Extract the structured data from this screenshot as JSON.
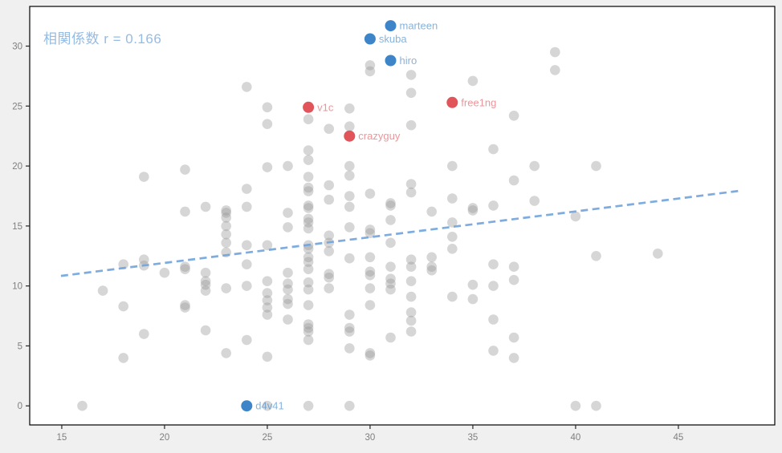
{
  "figure": {
    "bg_color": "#f0f0f0",
    "plot_bg_color": "#ffffff",
    "border_color": "#000000",
    "tick_label_color": "#7f7f7f"
  },
  "chart_data": {
    "type": "scatter",
    "annotation": {
      "text": "相関係数 r = 0.166",
      "color": "#82b1e0"
    },
    "xlim": [
      13.44,
      49.69
    ],
    "ylim": [
      -1.59,
      33.31
    ],
    "x_ticks": [
      15,
      20,
      25,
      30,
      35,
      40,
      45
    ],
    "y_ticks": [
      0,
      5,
      10,
      15,
      20,
      25,
      30
    ],
    "grid": false,
    "legend": "none",
    "trend_line": {
      "style": "dashed",
      "color": "#70a3da",
      "x": [
        14.96,
        47.93
      ],
      "y": [
        10.84,
        17.92
      ]
    },
    "series": [
      {
        "name": "all-players",
        "color": "#999999",
        "opacity": 0.4,
        "marker_radius": 6.3,
        "points": [
          [
            16,
            0
          ],
          [
            17,
            9.6
          ],
          [
            18,
            4
          ],
          [
            18,
            8.3
          ],
          [
            18,
            11.8
          ],
          [
            19,
            6
          ],
          [
            19,
            11.7
          ],
          [
            19,
            12.2
          ],
          [
            19,
            19.1
          ],
          [
            20,
            11.1
          ],
          [
            21,
            8.2
          ],
          [
            21,
            8.4
          ],
          [
            21,
            11.4
          ],
          [
            21,
            11.6
          ],
          [
            21,
            16.2
          ],
          [
            21,
            19.7
          ],
          [
            22,
            6.3
          ],
          [
            22,
            9.6
          ],
          [
            22,
            10.1
          ],
          [
            22,
            10.4
          ],
          [
            22,
            11.1
          ],
          [
            22,
            16.6
          ],
          [
            23,
            4.4
          ],
          [
            23,
            9.8
          ],
          [
            23,
            12.8
          ],
          [
            23,
            13.6
          ],
          [
            23,
            14.3
          ],
          [
            23,
            15
          ],
          [
            23,
            15.7
          ],
          [
            23,
            16.1
          ],
          [
            23,
            16.3
          ],
          [
            24,
            5.5
          ],
          [
            24,
            10
          ],
          [
            24,
            11.8
          ],
          [
            24,
            13.4
          ],
          [
            24,
            16.6
          ],
          [
            24,
            18.1
          ],
          [
            24,
            26.6
          ],
          [
            25,
            0
          ],
          [
            25,
            4.1
          ],
          [
            25,
            7.6
          ],
          [
            25,
            8.2
          ],
          [
            25,
            8.8
          ],
          [
            25,
            9.4
          ],
          [
            25,
            10.4
          ],
          [
            25,
            13.4
          ],
          [
            25,
            19.9
          ],
          [
            25,
            23.5
          ],
          [
            25,
            24.9
          ],
          [
            26,
            7.2
          ],
          [
            26,
            8.5
          ],
          [
            26,
            8.9
          ],
          [
            26,
            9.7
          ],
          [
            26,
            10.2
          ],
          [
            26,
            11.1
          ],
          [
            26,
            14.9
          ],
          [
            26,
            16.1
          ],
          [
            26,
            20
          ],
          [
            27,
            0
          ],
          [
            27,
            5.5
          ],
          [
            27,
            6.2
          ],
          [
            27,
            6.5
          ],
          [
            27,
            6.8
          ],
          [
            27,
            8.4
          ],
          [
            27,
            9.7
          ],
          [
            27,
            10.3
          ],
          [
            27,
            11.4
          ],
          [
            27,
            12
          ],
          [
            27,
            12.4
          ],
          [
            27,
            13.1
          ],
          [
            27,
            13.4
          ],
          [
            27,
            14.8
          ],
          [
            27,
            15.3
          ],
          [
            27,
            15.6
          ],
          [
            27,
            16.5
          ],
          [
            27,
            16.7
          ],
          [
            27,
            17.9
          ],
          [
            27,
            18.2
          ],
          [
            27,
            19.1
          ],
          [
            27,
            20.5
          ],
          [
            27,
            21.3
          ],
          [
            27,
            23.9
          ],
          [
            28,
            9.8
          ],
          [
            28,
            10.7
          ],
          [
            28,
            11
          ],
          [
            28,
            12.9
          ],
          [
            28,
            13.6
          ],
          [
            28,
            14.2
          ],
          [
            28,
            17.2
          ],
          [
            28,
            18.4
          ],
          [
            28,
            23.1
          ],
          [
            29,
            0
          ],
          [
            29,
            4.8
          ],
          [
            29,
            6.2
          ],
          [
            29,
            6.5
          ],
          [
            29,
            7.6
          ],
          [
            29,
            12.3
          ],
          [
            29,
            14.9
          ],
          [
            29,
            16.6
          ],
          [
            29,
            17.5
          ],
          [
            29,
            19.2
          ],
          [
            29,
            20
          ],
          [
            29,
            23.3
          ],
          [
            29,
            24.8
          ],
          [
            30,
            4.2
          ],
          [
            30,
            4.4
          ],
          [
            30,
            8.4
          ],
          [
            30,
            9.8
          ],
          [
            30,
            10.9
          ],
          [
            30,
            11.2
          ],
          [
            30,
            12.4
          ],
          [
            30,
            14.4
          ],
          [
            30,
            14.7
          ],
          [
            30,
            17.7
          ],
          [
            30,
            27.9
          ],
          [
            30,
            28.4
          ],
          [
            31,
            5.7
          ],
          [
            31,
            9.7
          ],
          [
            31,
            10.2
          ],
          [
            31,
            10.6
          ],
          [
            31,
            11.6
          ],
          [
            31,
            13.6
          ],
          [
            31,
            15.5
          ],
          [
            31,
            16.7
          ],
          [
            31,
            16.9
          ],
          [
            32,
            6.2
          ],
          [
            32,
            7.1
          ],
          [
            32,
            7.8
          ],
          [
            32,
            9.1
          ],
          [
            32,
            10.4
          ],
          [
            32,
            11.6
          ],
          [
            32,
            12.2
          ],
          [
            32,
            17.8
          ],
          [
            32,
            18.5
          ],
          [
            32,
            23.4
          ],
          [
            32,
            26.1
          ],
          [
            32,
            27.6
          ],
          [
            33,
            11.3
          ],
          [
            33,
            11.6
          ],
          [
            33,
            12.4
          ],
          [
            33,
            16.2
          ],
          [
            34,
            9.1
          ],
          [
            34,
            13.1
          ],
          [
            34,
            14.1
          ],
          [
            34,
            15.3
          ],
          [
            34,
            17.3
          ],
          [
            34,
            20
          ],
          [
            35,
            8.9
          ],
          [
            35,
            10.1
          ],
          [
            35,
            16.3
          ],
          [
            35,
            16.5
          ],
          [
            35,
            27.1
          ],
          [
            36,
            4.6
          ],
          [
            36,
            7.2
          ],
          [
            36,
            10
          ],
          [
            36,
            11.8
          ],
          [
            36,
            16.7
          ],
          [
            36,
            21.4
          ],
          [
            37,
            4
          ],
          [
            37,
            5.7
          ],
          [
            37,
            10.5
          ],
          [
            37,
            11.6
          ],
          [
            37,
            18.8
          ],
          [
            37,
            24.2
          ],
          [
            38,
            17.1
          ],
          [
            38,
            20
          ],
          [
            39,
            28
          ],
          [
            39,
            29.5
          ],
          [
            40,
            0
          ],
          [
            40,
            15.8
          ],
          [
            41,
            0
          ],
          [
            41,
            12.5
          ],
          [
            41,
            20
          ],
          [
            44,
            12.7
          ]
        ]
      },
      {
        "name": "highlighted-blue",
        "color": "#3d85c8",
        "label_opacity": 0.62,
        "marker_radius": 7,
        "points": [
          {
            "label": "marteen",
            "x": 31,
            "y": 31.7
          },
          {
            "label": "skuba",
            "x": 30,
            "y": 30.6
          },
          {
            "label": "hiro",
            "x": 31,
            "y": 28.8
          },
          {
            "label": "d4v41",
            "x": 24,
            "y": 0
          }
        ]
      },
      {
        "name": "highlighted-red",
        "color": "#e1545a",
        "label_opacity": 0.62,
        "marker_radius": 7,
        "points": [
          {
            "label": "v1c",
            "x": 27,
            "y": 24.9
          },
          {
            "label": "crazyguy",
            "x": 29,
            "y": 22.5
          },
          {
            "label": "free1ng",
            "x": 34,
            "y": 25.3
          }
        ]
      }
    ]
  }
}
